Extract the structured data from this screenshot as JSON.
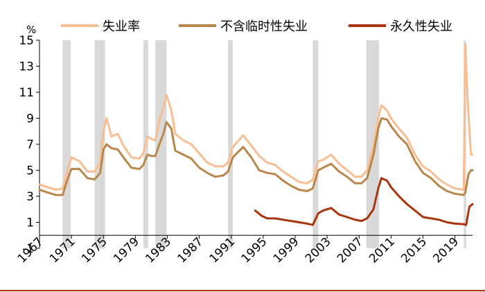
{
  "chart_data": {
    "type": "line",
    "title": "",
    "ylabel": "%",
    "xlabel": "",
    "ylim": [
      -1,
      15
    ],
    "xlim": [
      1967,
      2021.2
    ],
    "yticks": [
      -1,
      1,
      3,
      5,
      7,
      9,
      11,
      13,
      15
    ],
    "xticks": [
      1967,
      1971,
      1975,
      1979,
      1983,
      1987,
      1991,
      1995,
      1999,
      2003,
      2007,
      2011,
      2015,
      2019
    ],
    "legend_position": "top",
    "recessions": [
      [
        1969.9,
        1970.9
      ],
      [
        1973.9,
        1975.2
      ],
      [
        1980.0,
        1980.6
      ],
      [
        1981.5,
        1982.9
      ],
      [
        1990.6,
        1991.2
      ],
      [
        2001.2,
        2001.9
      ],
      [
        2007.9,
        2009.5
      ],
      [
        2020.1,
        2020.4
      ]
    ],
    "series": [
      {
        "name": "失业率",
        "color": "#F8BE92",
        "points": [
          [
            1967.0,
            3.9
          ],
          [
            1968.0,
            3.7
          ],
          [
            1969.0,
            3.5
          ],
          [
            1969.9,
            3.6
          ],
          [
            1970.5,
            5.0
          ],
          [
            1971.0,
            6.0
          ],
          [
            1972.0,
            5.7
          ],
          [
            1973.0,
            4.9
          ],
          [
            1973.9,
            4.9
          ],
          [
            1974.6,
            5.6
          ],
          [
            1975.0,
            8.0
          ],
          [
            1975.4,
            9.0
          ],
          [
            1976.0,
            7.6
          ],
          [
            1976.8,
            7.8
          ],
          [
            1977.5,
            6.9
          ],
          [
            1978.5,
            6.0
          ],
          [
            1979.5,
            5.9
          ],
          [
            1980.0,
            6.3
          ],
          [
            1980.5,
            7.6
          ],
          [
            1981.0,
            7.4
          ],
          [
            1981.5,
            7.3
          ],
          [
            1982.0,
            8.8
          ],
          [
            1982.5,
            9.8
          ],
          [
            1982.9,
            10.8
          ],
          [
            1983.5,
            9.6
          ],
          [
            1984.0,
            7.8
          ],
          [
            1985.0,
            7.3
          ],
          [
            1986.0,
            7.0
          ],
          [
            1987.0,
            6.3
          ],
          [
            1988.0,
            5.6
          ],
          [
            1989.0,
            5.3
          ],
          [
            1990.0,
            5.3
          ],
          [
            1990.6,
            5.6
          ],
          [
            1991.2,
            6.8
          ],
          [
            1992.5,
            7.7
          ],
          [
            1993.5,
            6.9
          ],
          [
            1994.5,
            6.1
          ],
          [
            1995.5,
            5.6
          ],
          [
            1996.5,
            5.4
          ],
          [
            1997.5,
            4.9
          ],
          [
            1998.5,
            4.5
          ],
          [
            1999.5,
            4.1
          ],
          [
            2000.5,
            4.0
          ],
          [
            2001.2,
            4.3
          ],
          [
            2001.9,
            5.7
          ],
          [
            2002.5,
            5.8
          ],
          [
            2003.5,
            6.2
          ],
          [
            2004.5,
            5.5
          ],
          [
            2005.5,
            5.0
          ],
          [
            2006.5,
            4.5
          ],
          [
            2007.3,
            4.5
          ],
          [
            2008.0,
            5.0
          ],
          [
            2008.8,
            6.8
          ],
          [
            2009.4,
            9.0
          ],
          [
            2009.8,
            10.0
          ],
          [
            2010.5,
            9.6
          ],
          [
            2011.0,
            9.0
          ],
          [
            2012.0,
            8.2
          ],
          [
            2013.0,
            7.5
          ],
          [
            2014.0,
            6.2
          ],
          [
            2015.0,
            5.3
          ],
          [
            2016.0,
            4.9
          ],
          [
            2017.0,
            4.3
          ],
          [
            2018.0,
            3.9
          ],
          [
            2019.0,
            3.6
          ],
          [
            2020.1,
            3.5
          ],
          [
            2020.3,
            14.7
          ],
          [
            2020.6,
            10.2
          ],
          [
            2021.0,
            6.2
          ],
          [
            2021.2,
            6.2
          ]
        ]
      },
      {
        "name": "不含临时性失业",
        "color": "#B8864A",
        "points": [
          [
            1967.0,
            3.5
          ],
          [
            1968.0,
            3.3
          ],
          [
            1969.0,
            3.1
          ],
          [
            1969.9,
            3.1
          ],
          [
            1970.5,
            4.3
          ],
          [
            1971.0,
            5.1
          ],
          [
            1972.0,
            5.1
          ],
          [
            1973.0,
            4.4
          ],
          [
            1973.9,
            4.3
          ],
          [
            1974.6,
            4.8
          ],
          [
            1975.0,
            6.6
          ],
          [
            1975.4,
            7.0
          ],
          [
            1976.0,
            6.7
          ],
          [
            1976.8,
            6.6
          ],
          [
            1977.5,
            6.0
          ],
          [
            1978.5,
            5.2
          ],
          [
            1979.5,
            5.1
          ],
          [
            1980.0,
            5.4
          ],
          [
            1980.5,
            6.2
          ],
          [
            1981.0,
            6.1
          ],
          [
            1981.5,
            6.1
          ],
          [
            1982.0,
            7.0
          ],
          [
            1982.5,
            7.8
          ],
          [
            1982.9,
            8.7
          ],
          [
            1983.5,
            8.2
          ],
          [
            1984.0,
            6.5
          ],
          [
            1985.0,
            6.2
          ],
          [
            1986.0,
            5.9
          ],
          [
            1987.0,
            5.2
          ],
          [
            1988.0,
            4.8
          ],
          [
            1989.0,
            4.5
          ],
          [
            1990.0,
            4.6
          ],
          [
            1990.6,
            4.9
          ],
          [
            1991.2,
            6.0
          ],
          [
            1992.5,
            6.8
          ],
          [
            1993.5,
            6.0
          ],
          [
            1994.5,
            5.0
          ],
          [
            1995.5,
            4.8
          ],
          [
            1996.5,
            4.7
          ],
          [
            1997.5,
            4.2
          ],
          [
            1998.5,
            3.8
          ],
          [
            1999.5,
            3.5
          ],
          [
            2000.5,
            3.4
          ],
          [
            2001.2,
            3.6
          ],
          [
            2001.9,
            5.0
          ],
          [
            2002.5,
            5.2
          ],
          [
            2003.5,
            5.5
          ],
          [
            2004.5,
            4.9
          ],
          [
            2005.5,
            4.5
          ],
          [
            2006.5,
            4.0
          ],
          [
            2007.3,
            4.0
          ],
          [
            2008.0,
            4.4
          ],
          [
            2008.8,
            6.2
          ],
          [
            2009.4,
            8.2
          ],
          [
            2009.8,
            9.0
          ],
          [
            2010.5,
            8.9
          ],
          [
            2011.0,
            8.4
          ],
          [
            2012.0,
            7.6
          ],
          [
            2013.0,
            7.0
          ],
          [
            2014.0,
            5.7
          ],
          [
            2015.0,
            4.8
          ],
          [
            2016.0,
            4.4
          ],
          [
            2017.0,
            3.8
          ],
          [
            2018.0,
            3.4
          ],
          [
            2019.0,
            3.2
          ],
          [
            2020.1,
            3.1
          ],
          [
            2020.3,
            3.3
          ],
          [
            2020.7,
            4.7
          ],
          [
            2021.0,
            5.0
          ],
          [
            2021.2,
            5.0
          ]
        ]
      },
      {
        "name": "永久性失业",
        "color": "#A8330D",
        "points": [
          [
            1994.0,
            1.9
          ],
          [
            1994.8,
            1.5
          ],
          [
            1995.5,
            1.3
          ],
          [
            1996.5,
            1.3
          ],
          [
            1997.5,
            1.2
          ],
          [
            1998.5,
            1.1
          ],
          [
            1999.5,
            1.0
          ],
          [
            2000.5,
            0.9
          ],
          [
            2001.2,
            0.8
          ],
          [
            2001.9,
            1.7
          ],
          [
            2002.5,
            1.9
          ],
          [
            2003.5,
            2.1
          ],
          [
            2004.5,
            1.6
          ],
          [
            2005.5,
            1.4
          ],
          [
            2006.5,
            1.2
          ],
          [
            2007.3,
            1.1
          ],
          [
            2008.0,
            1.3
          ],
          [
            2008.8,
            2.0
          ],
          [
            2009.4,
            3.6
          ],
          [
            2009.8,
            4.4
          ],
          [
            2010.5,
            4.2
          ],
          [
            2011.0,
            3.7
          ],
          [
            2012.0,
            3.0
          ],
          [
            2013.0,
            2.4
          ],
          [
            2014.0,
            1.9
          ],
          [
            2015.0,
            1.4
          ],
          [
            2016.0,
            1.3
          ],
          [
            2017.0,
            1.2
          ],
          [
            2018.0,
            1.0
          ],
          [
            2019.0,
            0.9
          ],
          [
            2020.1,
            0.85
          ],
          [
            2020.4,
            0.8
          ],
          [
            2020.8,
            2.2
          ],
          [
            2021.2,
            2.4
          ]
        ]
      }
    ]
  }
}
